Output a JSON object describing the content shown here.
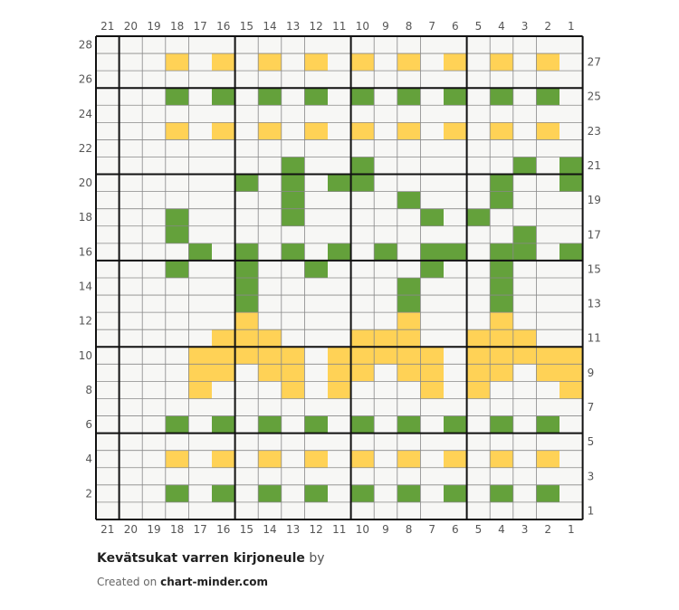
{
  "pattern": {
    "title": "Kevätsukat varren kirjoneule",
    "by_text": "by",
    "credit_prefix": "Created on",
    "credit_site": "chart-minder.com"
  },
  "chart_data": {
    "type": "grid",
    "columns": 21,
    "rows": 28,
    "column_numbering": "right-to-left",
    "row_numbering": "bottom-to-top",
    "block_size": 5,
    "colors": {
      "background": "#f7f7f5",
      "Y": "#ffd256",
      "G": "#64a13b",
      "grid": "#888888",
      "grid_major": "#111111"
    },
    "legend": {
      "Y": "yellow",
      "G": "green"
    },
    "grid_rows_top_to_bottom": [
      ".....................",
      "...Y.Y.Y.Y.Y.Y.Y.Y.Y.",
      ".....................",
      "...G.G.G.G.G.G.G.G.G.",
      ".....................",
      "...Y.Y.Y.Y.Y.Y.Y.Y.Y.",
      ".....................",
      "........G..G......G.G",
      "......G.G.GG.....G..G",
      "........G....G...G...",
      "...G....G.....G.G....",
      "...G..............G..",
      "....G.G.G.G.G.GG.GG.G",
      "...G..G..G....G..G...",
      "......G......G...G...",
      "......G......G...G...",
      "......Y......Y...Y...",
      ".....YYY...YYY..YYY..",
      "....YYYYY.YYYYY.YYYYY",
      "....YY.YY.YY.YY.YY.YY",
      "....Y...Y.Y...Y.Y...Y",
      ".....................",
      "...G.G.G.G.G.G.G.G.G.",
      ".....................",
      "...Y.Y.Y.Y.Y.Y.Y.Y.Y.",
      ".....................",
      "...G.G.G.G.G.G.G.G.G.",
      "....................."
    ]
  }
}
